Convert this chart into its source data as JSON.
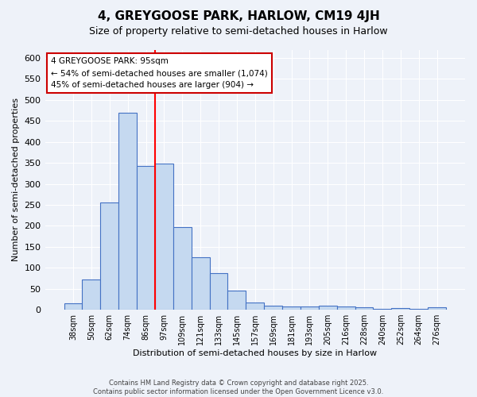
{
  "title": "4, GREYGOOSE PARK, HARLOW, CM19 4JH",
  "subtitle": "Size of property relative to semi-detached houses in Harlow",
  "xlabel": "Distribution of semi-detached houses by size in Harlow",
  "ylabel": "Number of semi-detached properties",
  "categories": [
    "38sqm",
    "50sqm",
    "62sqm",
    "74sqm",
    "86sqm",
    "97sqm",
    "109sqm",
    "121sqm",
    "133sqm",
    "145sqm",
    "157sqm",
    "169sqm",
    "181sqm",
    "193sqm",
    "205sqm",
    "216sqm",
    "228sqm",
    "240sqm",
    "252sqm",
    "264sqm",
    "276sqm"
  ],
  "values": [
    15,
    72,
    255,
    470,
    342,
    348,
    197,
    125,
    88,
    46,
    17,
    9,
    7,
    8,
    10,
    7,
    5,
    2,
    3,
    2,
    5
  ],
  "bar_color": "#c5d9f0",
  "bar_edge_color": "#4472c4",
  "red_line_index": 4.5,
  "annotation_title": "4 GREYGOOSE PARK: 95sqm",
  "annotation_line1": "← 54% of semi-detached houses are smaller (1,074)",
  "annotation_line2": "45% of semi-detached houses are larger (904) →",
  "annotation_box_color": "#ffffff",
  "annotation_box_edge_color": "#cc0000",
  "ylim": [
    0,
    620
  ],
  "yticks": [
    0,
    50,
    100,
    150,
    200,
    250,
    300,
    350,
    400,
    450,
    500,
    550,
    600
  ],
  "background_color": "#eef2f9",
  "footer_line1": "Contains HM Land Registry data © Crown copyright and database right 2025.",
  "footer_line2": "Contains public sector information licensed under the Open Government Licence v3.0."
}
